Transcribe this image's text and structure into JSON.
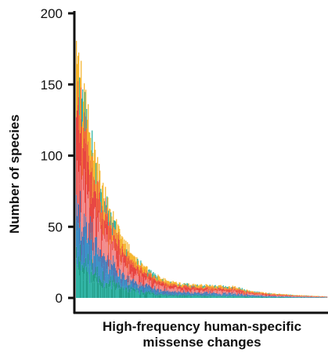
{
  "chart_data": {
    "type": "bar",
    "xlabel_lines": [
      "High-frequency human-specific",
      "missense changes"
    ],
    "ylabel": "Number of species",
    "yticks": [
      0,
      50,
      100,
      150,
      200
    ],
    "ylim": [
      0,
      200
    ],
    "grid": false,
    "legend": "none",
    "n_bars": 320,
    "colors": {
      "axis": "#111111",
      "layers": [
        "#2fb3a4",
        "#1f9a86",
        "#3a8fc6",
        "#4d74b3",
        "#f28a8a",
        "#e8433f",
        "#f06a3a",
        "#f5b52e"
      ]
    },
    "profile_points": [
      {
        "rank": 0,
        "value": 181
      },
      {
        "rank": 2,
        "value": 172
      },
      {
        "rank": 5,
        "value": 158
      },
      {
        "rank": 10,
        "value": 140
      },
      {
        "rank": 15,
        "value": 125
      },
      {
        "rank": 20,
        "value": 110
      },
      {
        "rank": 25,
        "value": 97
      },
      {
        "rank": 30,
        "value": 85
      },
      {
        "rank": 40,
        "value": 66
      },
      {
        "rank": 50,
        "value": 52
      },
      {
        "rank": 60,
        "value": 41
      },
      {
        "rank": 70,
        "value": 32
      },
      {
        "rank": 80,
        "value": 25
      },
      {
        "rank": 95,
        "value": 18
      },
      {
        "rank": 110,
        "value": 13
      },
      {
        "rank": 130,
        "value": 10
      },
      {
        "rank": 160,
        "value": 9
      },
      {
        "rank": 200,
        "value": 8
      },
      {
        "rank": 220,
        "value": 5
      },
      {
        "rank": 250,
        "value": 3
      },
      {
        "rank": 280,
        "value": 2
      },
      {
        "rank": 319,
        "value": 1
      }
    ]
  }
}
